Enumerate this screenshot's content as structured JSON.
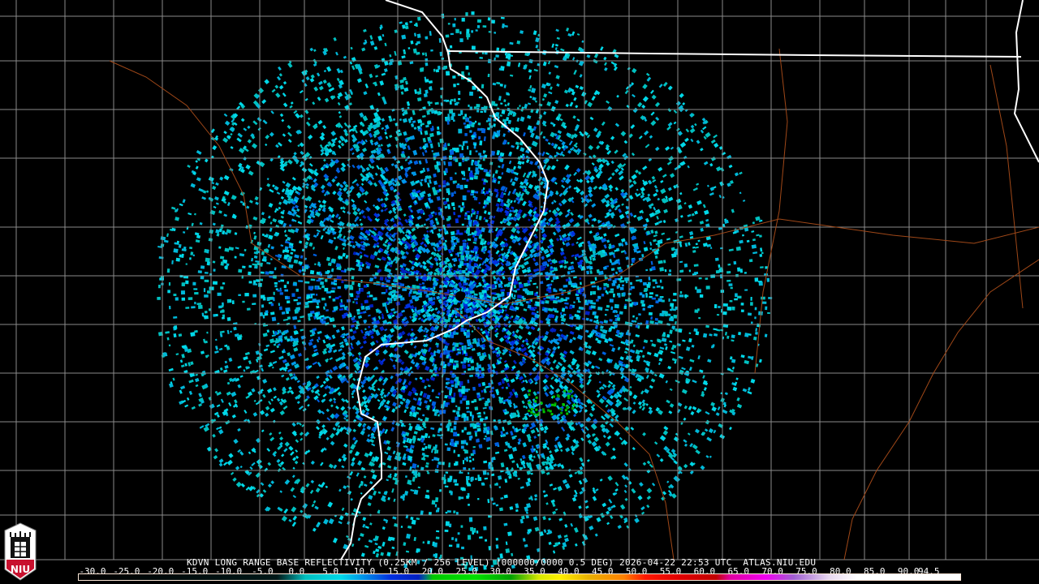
{
  "product": {
    "title": "KDVN LONG RANGE BASE REFLECTIVITY (0.25KM / 256 LEVEL) (000000/0000 0.5 DEG) 2026-04-22 22:53 UTC  ATLAS.NIU.EDU",
    "radar_site": "KDVN",
    "elevation": "0.5 DEG",
    "timestamp": "2026-04-22 22:53 UTC",
    "source": "ATLAS.NIU.EDU"
  },
  "logo": {
    "text": "NIU",
    "color": "#c8102e"
  },
  "colorbar": {
    "labels": [
      "-30.0",
      "-25.0",
      "-20.0",
      "-15.0",
      "-10.0",
      "-5.0",
      "0.0",
      "5.0",
      "10.0",
      "15.0",
      "20.0",
      "25.0",
      "30.0",
      "35.0",
      "40.0",
      "45.0",
      "50.0",
      "55.0",
      "60.0",
      "65.0",
      "70.0",
      "75.0",
      "80.0",
      "85.0",
      "90.0",
      "94.5"
    ],
    "min": -30,
    "max": 94.5,
    "stops": [
      {
        "dbz": -30,
        "color": "#000000"
      },
      {
        "dbz": -2,
        "color": "#001818"
      },
      {
        "dbz": 0,
        "color": "#006868"
      },
      {
        "dbz": 2,
        "color": "#00c0c0"
      },
      {
        "dbz": 7,
        "color": "#00d8e8"
      },
      {
        "dbz": 10,
        "color": "#0098e8"
      },
      {
        "dbz": 14,
        "color": "#0030e0"
      },
      {
        "dbz": 18,
        "color": "#0020c0"
      },
      {
        "dbz": 19,
        "color": "#007080"
      },
      {
        "dbz": 20,
        "color": "#00c800"
      },
      {
        "dbz": 26,
        "color": "#00e000"
      },
      {
        "dbz": 31,
        "color": "#00a000"
      },
      {
        "dbz": 35,
        "color": "#d8e800"
      },
      {
        "dbz": 38,
        "color": "#ffee00"
      },
      {
        "dbz": 42,
        "color": "#e8b000"
      },
      {
        "dbz": 47,
        "color": "#ff8000"
      },
      {
        "dbz": 50,
        "color": "#ff1800"
      },
      {
        "dbz": 55,
        "color": "#e00000"
      },
      {
        "dbz": 60,
        "color": "#c00000"
      },
      {
        "dbz": 62,
        "color": "#e000a0"
      },
      {
        "dbz": 67,
        "color": "#f000f0"
      },
      {
        "dbz": 71,
        "color": "#a060d0"
      },
      {
        "dbz": 76,
        "color": "#e8d8f0"
      },
      {
        "dbz": 80,
        "color": "#ffffff"
      },
      {
        "dbz": 94.5,
        "color": "#ffffff"
      }
    ]
  },
  "map_colors": {
    "state_border": "#ffffff",
    "county_border": "#8a8a8a",
    "roads": "#a04818",
    "background": "#000000"
  }
}
